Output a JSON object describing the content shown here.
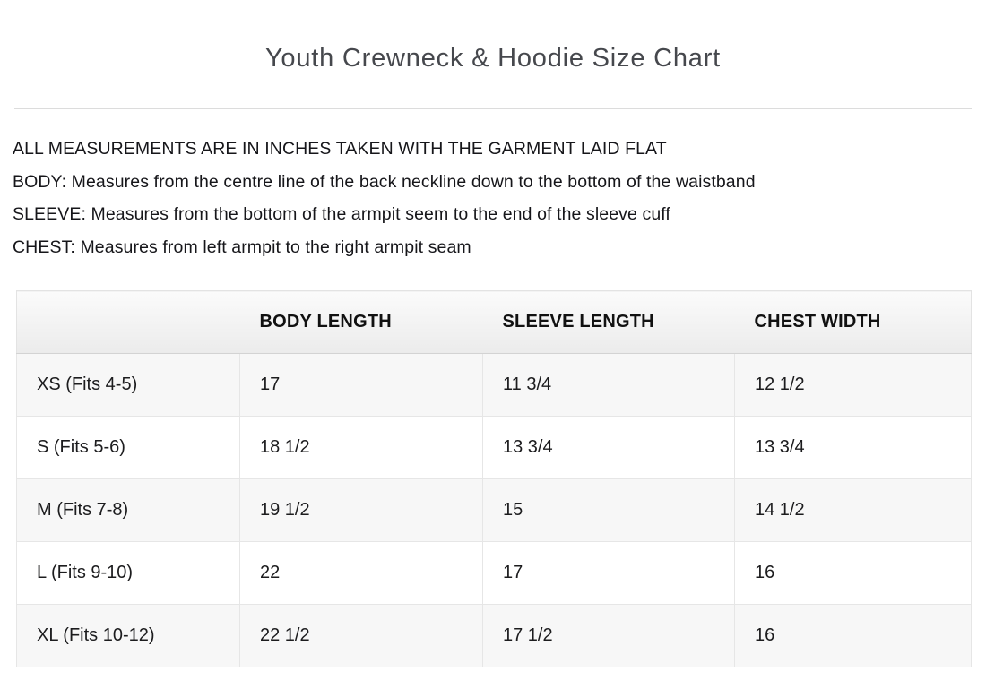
{
  "page": {
    "title": "Youth Crewneck & Hoodie Size Chart"
  },
  "notes": {
    "measurements": "ALL MEASUREMENTS ARE IN INCHES TAKEN WITH THE GARMENT LAID FLAT",
    "body": "BODY: Measures from the centre line of the back neckline down to the bottom of the waistband",
    "sleeve": "SLEEVE: Measures from the bottom of the armpit seem to the end of the sleeve cuff",
    "chest": "CHEST: Measures from left armpit to the right armpit seam"
  },
  "size_table": {
    "columns": [
      "",
      "BODY LENGTH",
      "SLEEVE LENGTH",
      "CHEST WIDTH"
    ],
    "rows": [
      {
        "size": "XS (Fits 4-5)",
        "body_length": "17",
        "sleeve_length": "11 3/4",
        "chest_width": "12 1/2"
      },
      {
        "size": "S (Fits 5-6)",
        "body_length": "18 1/2",
        "sleeve_length": "13 3/4",
        "chest_width": "13 3/4"
      },
      {
        "size": "M (Fits 7-8)",
        "body_length": "19 1/2",
        "sleeve_length": "15",
        "chest_width": "14 1/2"
      },
      {
        "size": "L (Fits 9-10)",
        "body_length": "22",
        "sleeve_length": "17",
        "chest_width": "16"
      },
      {
        "size": "XL (Fits 10-12)",
        "body_length": "22 1/2",
        "sleeve_length": "17 1/2",
        "chest_width": "16"
      }
    ]
  },
  "colors": {
    "title_text": "#46484d",
    "body_text": "#16161a",
    "header_background_top": "#fbfbfb",
    "header_background_bottom": "#ebebeb",
    "row_stripe": "#f7f7f7",
    "border": "#e6e6e6",
    "rule": "#dcdcdc"
  }
}
